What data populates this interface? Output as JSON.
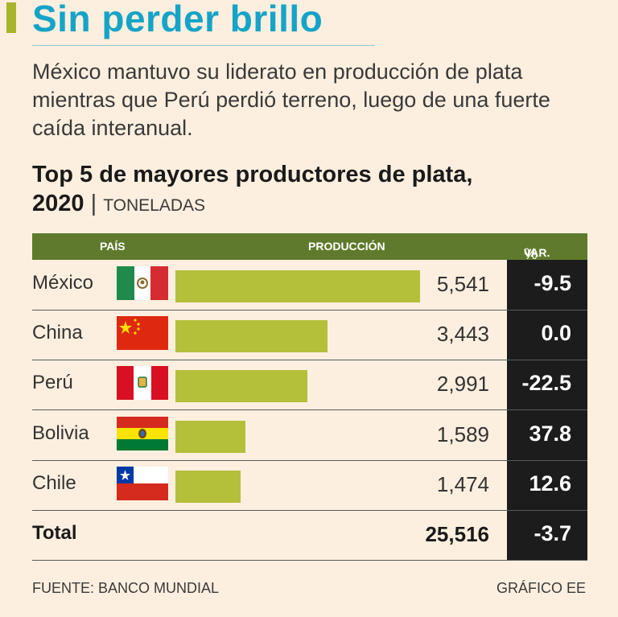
{
  "title": "Sin perder brillo",
  "subtitle": "México mantuvo su liderato en producción de plata mientras que Perú perdió terreno, luego de una fuerte caída interanual.",
  "chart_title_main": "Top 5 de mayores productores de plata,",
  "chart_title_year": "2020",
  "chart_title_sep": "|",
  "chart_title_unit": "TONELADAS",
  "headers": {
    "country": "PAÍS",
    "production": "PRODUCCIÓN",
    "var": "VAR.",
    "var_pct": "%"
  },
  "colors": {
    "title": "#15a4c7",
    "bar": "#b4c03a",
    "header_bg": "#5f7a2c",
    "var_bg": "#1c1c1c",
    "background": "#fcefdf"
  },
  "chart_data": {
    "type": "bar",
    "orientation": "horizontal",
    "title": "Top 5 de mayores productores de plata, 2020",
    "unit": "Toneladas",
    "categories": [
      "México",
      "China",
      "Perú",
      "Bolivia",
      "Chile"
    ],
    "series": [
      {
        "name": "Producción",
        "values": [
          5541,
          3443,
          2991,
          1589,
          1474
        ],
        "labels": [
          "5,541",
          "3,443",
          "2,991",
          "1,589",
          "1,474"
        ]
      },
      {
        "name": "Var. %",
        "values": [
          -9.5,
          0.0,
          -22.5,
          37.8,
          12.6
        ],
        "labels": [
          "-9.5",
          "0.0",
          "-22.5",
          "37.8",
          "12.6"
        ]
      }
    ],
    "flags": [
      "mexico-flag-icon",
      "china-flag-icon",
      "peru-flag-icon",
      "bolivia-flag-icon",
      "chile-flag-icon"
    ],
    "xlim": [
      0,
      5541
    ],
    "total": {
      "label": "Total",
      "value": "25,516",
      "var": "-3.7"
    }
  },
  "footer": {
    "source": "FUENTE: BANCO MUNDIAL",
    "credit": "GRÁFICO EE"
  }
}
